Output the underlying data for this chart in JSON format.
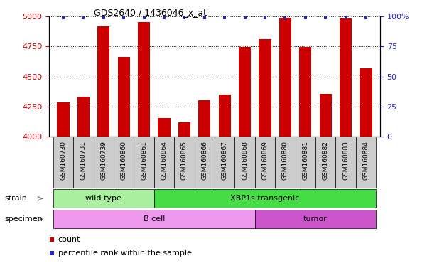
{
  "title": "GDS2640 / 1436046_x_at",
  "samples": [
    "GSM160730",
    "GSM160731",
    "GSM160739",
    "GSM160860",
    "GSM160861",
    "GSM160864",
    "GSM160865",
    "GSM160866",
    "GSM160867",
    "GSM160868",
    "GSM160869",
    "GSM160880",
    "GSM160881",
    "GSM160882",
    "GSM160883",
    "GSM160884"
  ],
  "counts": [
    4285,
    4330,
    4920,
    4660,
    4950,
    4155,
    4120,
    4300,
    4350,
    4748,
    4810,
    4990,
    4748,
    4355,
    4980,
    4570
  ],
  "percentiles": [
    99,
    99,
    99,
    99,
    99,
    99,
    99,
    99,
    99,
    99,
    99,
    99,
    99,
    99,
    99,
    99
  ],
  "ylim_left": [
    4000,
    5000
  ],
  "yticks_left": [
    4000,
    4250,
    4500,
    4750,
    5000
  ],
  "ylim_right": [
    0,
    100
  ],
  "yticks_right": [
    0,
    25,
    50,
    75,
    100
  ],
  "bar_color": "#cc0000",
  "dot_color": "#2222cc",
  "strain_groups": [
    {
      "label": "wild type",
      "start": 0,
      "end": 5,
      "color": "#aaeea0"
    },
    {
      "label": "XBP1s transgenic",
      "start": 5,
      "end": 16,
      "color": "#44dd44"
    }
  ],
  "specimen_groups": [
    {
      "label": "B cell",
      "start": 0,
      "end": 10,
      "color": "#ee99ee"
    },
    {
      "label": "tumor",
      "start": 10,
      "end": 16,
      "color": "#cc55cc"
    }
  ],
  "strain_label": "strain",
  "specimen_label": "specimen",
  "legend": [
    {
      "color": "#cc0000",
      "label": "count"
    },
    {
      "color": "#2222cc",
      "label": "percentile rank within the sample"
    }
  ],
  "background_color": "#ffffff",
  "tick_label_color_left": "#cc0000",
  "tick_label_color_right": "#2222cc",
  "grid_color": "#000000",
  "bar_width": 0.6,
  "xtick_bg": "#cccccc"
}
